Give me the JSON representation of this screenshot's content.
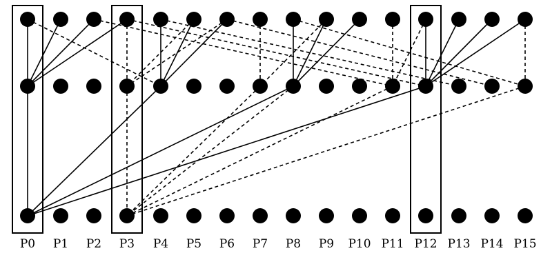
{
  "labels": [
    "P0",
    "P1",
    "P2",
    "P3",
    "P4",
    "P5",
    "P6",
    "P7",
    "P8",
    "P9",
    "P10",
    "P11",
    "P12",
    "P13",
    "P14",
    "P15"
  ],
  "highlighted_columns": [
    0,
    3,
    12
  ],
  "rows": [
    "top",
    "middle",
    "bottom"
  ],
  "solid_edges": [
    {
      "from": [
        0,
        "top"
      ],
      "to": [
        0,
        "middle"
      ]
    },
    {
      "from": [
        0,
        "middle"
      ],
      "to": [
        0,
        "bottom"
      ]
    },
    {
      "from": [
        1,
        "top"
      ],
      "to": [
        0,
        "middle"
      ]
    },
    {
      "from": [
        2,
        "top"
      ],
      "to": [
        0,
        "middle"
      ]
    },
    {
      "from": [
        3,
        "top"
      ],
      "to": [
        0,
        "middle"
      ]
    },
    {
      "from": [
        4,
        "top"
      ],
      "to": [
        4,
        "middle"
      ]
    },
    {
      "from": [
        5,
        "top"
      ],
      "to": [
        4,
        "middle"
      ]
    },
    {
      "from": [
        6,
        "top"
      ],
      "to": [
        4,
        "middle"
      ]
    },
    {
      "from": [
        8,
        "top"
      ],
      "to": [
        8,
        "middle"
      ]
    },
    {
      "from": [
        9,
        "top"
      ],
      "to": [
        8,
        "middle"
      ]
    },
    {
      "from": [
        10,
        "top"
      ],
      "to": [
        8,
        "middle"
      ]
    },
    {
      "from": [
        12,
        "top"
      ],
      "to": [
        12,
        "middle"
      ]
    },
    {
      "from": [
        13,
        "top"
      ],
      "to": [
        12,
        "middle"
      ]
    },
    {
      "from": [
        14,
        "top"
      ],
      "to": [
        12,
        "middle"
      ]
    },
    {
      "from": [
        15,
        "top"
      ],
      "to": [
        12,
        "middle"
      ]
    },
    {
      "from": [
        4,
        "middle"
      ],
      "to": [
        0,
        "bottom"
      ]
    },
    {
      "from": [
        8,
        "middle"
      ],
      "to": [
        0,
        "bottom"
      ]
    },
    {
      "from": [
        12,
        "middle"
      ],
      "to": [
        0,
        "bottom"
      ]
    }
  ],
  "dashed_edges": [
    {
      "from": [
        0,
        "top"
      ],
      "to": [
        4,
        "middle"
      ]
    },
    {
      "from": [
        3,
        "top"
      ],
      "to": [
        3,
        "middle"
      ]
    },
    {
      "from": [
        3,
        "middle"
      ],
      "to": [
        3,
        "bottom"
      ]
    },
    {
      "from": [
        5,
        "top"
      ],
      "to": [
        3,
        "middle"
      ]
    },
    {
      "from": [
        6,
        "top"
      ],
      "to": [
        3,
        "middle"
      ]
    },
    {
      "from": [
        7,
        "top"
      ],
      "to": [
        7,
        "middle"
      ]
    },
    {
      "from": [
        9,
        "top"
      ],
      "to": [
        7,
        "middle"
      ]
    },
    {
      "from": [
        11,
        "top"
      ],
      "to": [
        11,
        "middle"
      ]
    },
    {
      "from": [
        12,
        "top"
      ],
      "to": [
        11,
        "middle"
      ]
    },
    {
      "from": [
        15,
        "top"
      ],
      "to": [
        15,
        "middle"
      ]
    },
    {
      "from": [
        2,
        "top"
      ],
      "to": [
        11,
        "middle"
      ]
    },
    {
      "from": [
        3,
        "top"
      ],
      "to": [
        12,
        "middle"
      ]
    },
    {
      "from": [
        4,
        "top"
      ],
      "to": [
        13,
        "middle"
      ]
    },
    {
      "from": [
        6,
        "top"
      ],
      "to": [
        14,
        "middle"
      ]
    },
    {
      "from": [
        8,
        "top"
      ],
      "to": [
        15,
        "middle"
      ]
    },
    {
      "from": [
        7,
        "middle"
      ],
      "to": [
        3,
        "bottom"
      ]
    },
    {
      "from": [
        8,
        "middle"
      ],
      "to": [
        3,
        "bottom"
      ]
    },
    {
      "from": [
        11,
        "middle"
      ],
      "to": [
        3,
        "bottom"
      ]
    },
    {
      "from": [
        15,
        "middle"
      ],
      "to": [
        3,
        "bottom"
      ]
    }
  ]
}
